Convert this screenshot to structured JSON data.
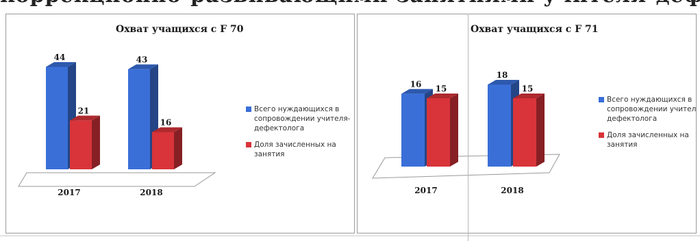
{
  "header_text": "коррекционно-развивающими занятиями учителя-дефектолога",
  "colors": {
    "series_total": "#3a6fd8",
    "series_enrolled": "#d8343a",
    "floor": "#ffffff",
    "floor_stroke": "#999999"
  },
  "chart_data": [
    {
      "type": "bar",
      "title": "Охват учащихся с F 70",
      "categories": [
        "2017",
        "2018"
      ],
      "series": [
        {
          "name": "Всего нуждающихся в сопровождении учителя-дефектолога",
          "values": [
            44,
            43
          ]
        },
        {
          "name": "Доля зачисленных на занятия",
          "values": [
            21,
            16
          ]
        }
      ],
      "ylim": [
        0,
        44
      ],
      "legend": "right",
      "grid": false
    },
    {
      "type": "bar",
      "title": "Охват учащихся с F 71",
      "categories": [
        "2017",
        "2018"
      ],
      "series": [
        {
          "name": "Всего нуждающихся в сопровождении учителя-дефектолога",
          "values": [
            16,
            18
          ]
        },
        {
          "name": "Доля зачисленных на занятия",
          "values": [
            15,
            15
          ]
        }
      ],
      "ylim": [
        0,
        18
      ],
      "legend": "right",
      "grid": false
    }
  ]
}
